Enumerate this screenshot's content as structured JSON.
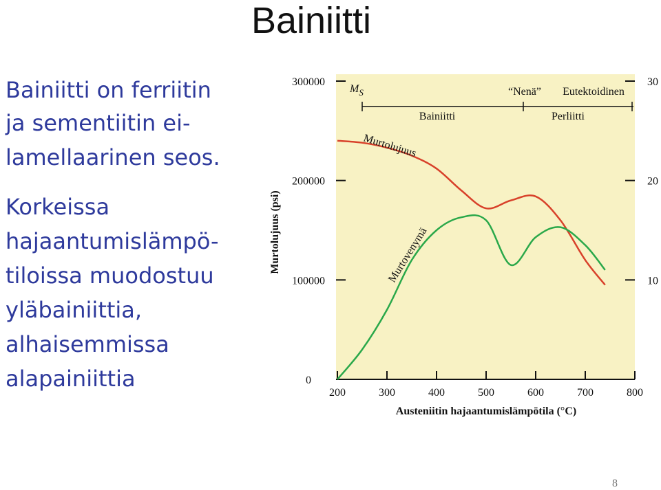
{
  "title": "Bainiitti",
  "paragraphs": [
    [
      "Bainiitti on ferriitin",
      "ja sementiitin ei-",
      "lamellaarinen seos."
    ],
    [
      "Korkeissa",
      "hajaantumislämpö-",
      "tiloissa muodostuu",
      "yläbainiittia,",
      "alhaisemmissa",
      "alapainiittia"
    ]
  ],
  "page_number": "8",
  "chart_data": {
    "type": "line",
    "ylabel": "Murtolujuus (psi)",
    "xlabel": "Austeniitin hajaantumislämpötila (°C)",
    "ms": {
      "main": "M",
      "sub": "S"
    },
    "annotations": [
      "“Nenä”",
      "Eutektoidinen",
      "Bainiitti",
      "Perliitti"
    ],
    "x": [
      200,
      250,
      300,
      350,
      400,
      450,
      500,
      550,
      600,
      650,
      700,
      740
    ],
    "series": [
      {
        "name": "Murtolujuus",
        "color": "#d8412a",
        "values": [
          240000,
          238000,
          233000,
          225000,
          212000,
          190000,
          172000,
          180000,
          184000,
          160000,
          120000,
          95000
        ]
      },
      {
        "name": "Murtovenymä",
        "color": "#2aa84a",
        "axis": "y2",
        "values": [
          0,
          3,
          7,
          12,
          15,
          16.3,
          16,
          11.5,
          14.3,
          15.3,
          13.5,
          11
        ]
      }
    ],
    "xlim": [
      200,
      800
    ],
    "xticks": [
      200,
      300,
      400,
      500,
      600,
      700,
      800
    ],
    "ylim": [
      0,
      300000
    ],
    "yticks": [
      0,
      100000,
      200000,
      300000
    ],
    "y2lim": [
      0,
      30
    ],
    "y2ticks": [
      10,
      20,
      30
    ],
    "background": "#f8f2c4"
  }
}
